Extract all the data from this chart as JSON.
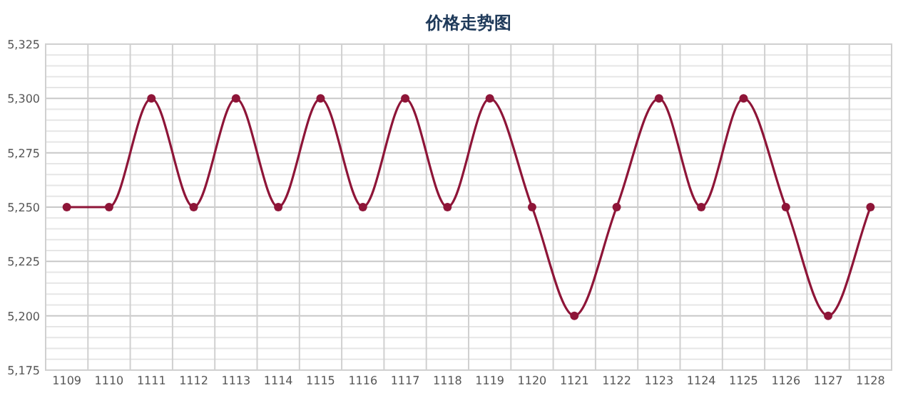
{
  "chart_data": {
    "type": "line",
    "title": "价格走势图",
    "categories": [
      "1109",
      "1110",
      "1111",
      "1112",
      "1113",
      "1114",
      "1115",
      "1116",
      "1117",
      "1118",
      "1119",
      "1120",
      "1121",
      "1122",
      "1123",
      "1124",
      "1125",
      "1126",
      "1127",
      "1128"
    ],
    "series": [
      {
        "color": "#8e1538",
        "values": [
          5250,
          5250,
          5300,
          5250,
          5300,
          5250,
          5300,
          5250,
          5300,
          5250,
          5300,
          5250,
          5200,
          5250,
          5300,
          5250,
          5300,
          5250,
          5200,
          5250
        ]
      }
    ],
    "ylim": [
      5175,
      5325
    ],
    "yticks": [
      {
        "value": 5175,
        "label": "5,175"
      },
      {
        "value": 5200,
        "label": "5,200"
      },
      {
        "value": 5225,
        "label": "5,225"
      },
      {
        "value": 5250,
        "label": "5,250"
      },
      {
        "value": 5275,
        "label": "5,275"
      },
      {
        "value": 5300,
        "label": "5,300"
      },
      {
        "value": 5325,
        "label": "5,325"
      }
    ],
    "grid": true,
    "marker": "circle"
  }
}
